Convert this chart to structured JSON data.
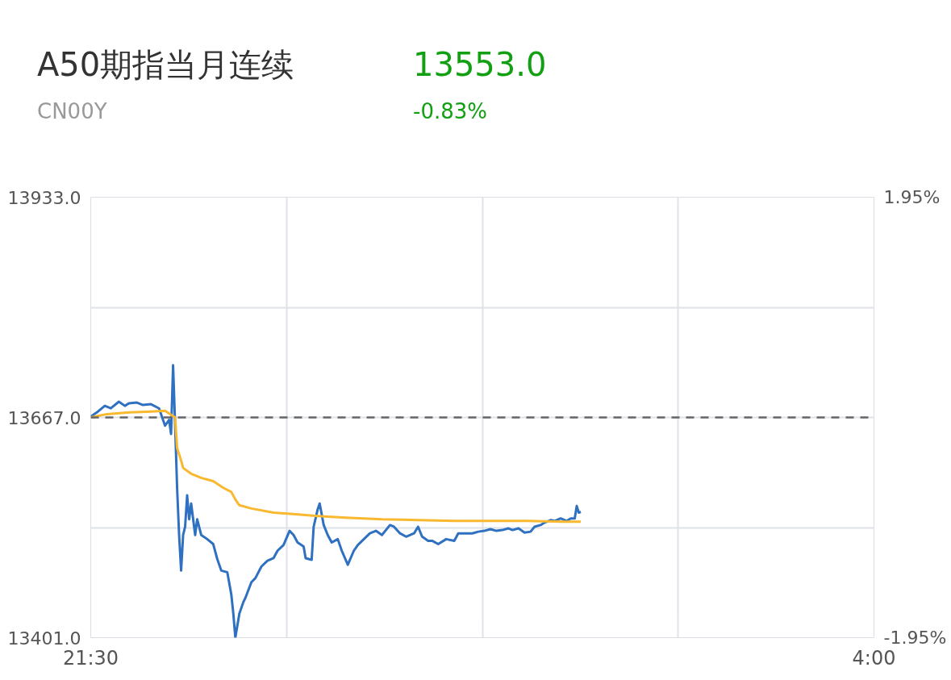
{
  "chart_data": {
    "type": "line",
    "title": "A50期指当月连续",
    "subtitle": "CN00Y",
    "annotations": [
      "13553.0",
      "-0.83%"
    ],
    "xlim": [
      "2000-01-01T21:30",
      "2000-01-02T04:00"
    ],
    "xticks": [
      {
        "value": "2000-01-01T21:30",
        "label": "21:30"
      },
      {
        "value": "2000-01-01T23:07:30",
        "label": null
      },
      {
        "value": "2000-01-02T00:45",
        "label": null
      },
      {
        "value": "2000-01-02T02:22:30",
        "label": null
      },
      {
        "value": "2000-01-02T04:00",
        "label": "4:00"
      }
    ],
    "ylim": [
      13401,
      13933
    ],
    "yticks": [
      {
        "value": 13401,
        "label": "13401.0"
      },
      {
        "value": 13534,
        "label": null
      },
      {
        "value": 13667,
        "label": "13667.0"
      },
      {
        "value": 13800,
        "label": null
      },
      {
        "value": 13933,
        "label": "13933.0"
      }
    ],
    "y2lim": [
      -1.95,
      1.95
    ],
    "y2ticks": [
      {
        "value": -1.95,
        "label": "-1.95%"
      },
      {
        "value": 1.95,
        "label": "1.95%"
      }
    ],
    "grid": true,
    "marker": "none",
    "line_style": "solid",
    "ref_lines": [
      {
        "axis": "y",
        "value": 13667,
        "color": "#666666",
        "line_style": "dashed"
      }
    ],
    "series": [
      {
        "color": "#3070c0",
        "x": [
          "2000-01-01T21:30",
          "2000-01-01T21:33",
          "2000-01-01T21:37",
          "2000-01-01T21:40",
          "2000-01-01T21:44",
          "2000-01-01T21:47",
          "2000-01-01T21:49",
          "2000-01-01T21:53",
          "2000-01-01T21:56",
          "2000-01-01T22:00",
          "2000-01-01T22:04",
          "2000-01-01T22:07",
          "2000-01-01T22:09",
          "2000-01-01T22:10",
          "2000-01-01T22:11",
          "2000-01-01T22:12",
          "2000-01-01T22:13",
          "2000-01-01T22:14",
          "2000-01-01T22:15",
          "2000-01-01T22:16",
          "2000-01-01T22:17",
          "2000-01-01T22:18",
          "2000-01-01T22:19",
          "2000-01-01T22:20",
          "2000-01-01T22:22",
          "2000-01-01T22:23",
          "2000-01-01T22:25",
          "2000-01-01T22:28",
          "2000-01-01T22:31",
          "2000-01-01T22:33",
          "2000-01-01T22:35",
          "2000-01-01T22:38",
          "2000-01-01T22:40",
          "2000-01-01T22:41",
          "2000-01-01T22:42",
          "2000-01-01T22:44",
          "2000-01-01T22:46",
          "2000-01-01T22:47",
          "2000-01-01T22:50",
          "2000-01-01T22:52",
          "2000-01-01T22:55",
          "2000-01-01T22:58",
          "2000-01-01T23:01",
          "2000-01-01T23:03",
          "2000-01-01T23:06",
          "2000-01-01T23:09",
          "2000-01-01T23:11",
          "2000-01-01T23:13",
          "2000-01-01T23:16",
          "2000-01-01T23:17",
          "2000-01-01T23:20",
          "2000-01-01T23:21",
          "2000-01-01T23:23",
          "2000-01-01T23:24",
          "2000-01-01T23:26",
          "2000-01-01T23:28",
          "2000-01-01T23:30",
          "2000-01-01T23:33",
          "2000-01-01T23:35",
          "2000-01-01T23:38",
          "2000-01-01T23:41",
          "2000-01-01T23:43",
          "2000-01-01T23:46",
          "2000-01-01T23:49",
          "2000-01-01T23:52",
          "2000-01-01T23:55",
          "2000-01-01T23:59",
          "2000-01-02T00:01",
          "2000-01-02T00:04",
          "2000-01-02T00:07",
          "2000-01-02T00:11",
          "2000-01-02T00:13",
          "2000-01-02T00:15",
          "2000-01-02T00:18",
          "2000-01-02T00:20",
          "2000-01-02T00:23",
          "2000-01-02T00:27",
          "2000-01-02T00:31",
          "2000-01-02T00:33",
          "2000-01-02T00:36",
          "2000-01-02T00:40",
          "2000-01-02T00:43",
          "2000-01-02T00:46",
          "2000-01-02T00:49",
          "2000-01-02T00:52",
          "2000-01-02T00:55",
          "2000-01-02T00:58",
          "2000-01-02T01:00",
          "2000-01-02T01:03",
          "2000-01-02T01:06",
          "2000-01-02T01:09",
          "2000-01-02T01:11",
          "2000-01-02T01:14",
          "2000-01-02T01:16",
          "2000-01-02T01:19",
          "2000-01-02T01:21",
          "2000-01-02T01:24",
          "2000-01-02T01:27",
          "2000-01-02T01:29",
          "2000-01-02T01:31",
          "2000-01-02T01:32",
          "2000-01-02T01:33",
          "2000-01-02T01:34"
        ],
        "values": [
          13668,
          13673,
          13681,
          13678,
          13686,
          13681,
          13684,
          13685,
          13682,
          13683,
          13678,
          13657,
          13664,
          13647,
          13730,
          13659,
          13582,
          13525,
          13482,
          13525,
          13535,
          13573,
          13544,
          13563,
          13525,
          13544,
          13525,
          13520,
          13514,
          13496,
          13482,
          13480,
          13453,
          13430,
          13401,
          13430,
          13444,
          13449,
          13468,
          13473,
          13487,
          13494,
          13497,
          13506,
          13513,
          13530,
          13525,
          13516,
          13511,
          13497,
          13495,
          13535,
          13556,
          13563,
          13537,
          13525,
          13516,
          13520,
          13506,
          13489,
          13506,
          13513,
          13520,
          13527,
          13530,
          13525,
          13537,
          13535,
          13527,
          13523,
          13527,
          13535,
          13523,
          13518,
          13518,
          13514,
          13520,
          13518,
          13527,
          13527,
          13527,
          13529,
          13530,
          13532,
          13530,
          13531,
          13533,
          13531,
          13533,
          13528,
          13529,
          13535,
          13537,
          13540,
          13543,
          13542,
          13545,
          13542,
          13545,
          13545,
          13560,
          13552,
          13553
        ]
      },
      {
        "color": "#f8b830",
        "x": [
          "2000-01-01T21:30",
          "2000-01-01T21:38",
          "2000-01-01T21:49",
          "2000-01-01T22:00",
          "2000-01-01T22:07",
          "2000-01-01T22:12",
          "2000-01-01T22:13",
          "2000-01-01T22:15",
          "2000-01-01T22:16",
          "2000-01-01T22:20",
          "2000-01-01T22:25",
          "2000-01-01T22:31",
          "2000-01-01T22:36",
          "2000-01-01T22:40",
          "2000-01-01T22:42",
          "2000-01-01T22:44",
          "2000-01-01T22:50",
          "2000-01-01T23:01",
          "2000-01-01T23:12",
          "2000-01-01T23:23",
          "2000-01-01T23:37",
          "2000-01-01T23:55",
          "2000-01-02T00:13",
          "2000-01-02T00:31",
          "2000-01-02T00:49",
          "2000-01-02T01:07",
          "2000-01-02T01:25",
          "2000-01-02T01:34"
        ],
        "values": [
          13667,
          13671,
          13673,
          13674,
          13675,
          13667,
          13630,
          13615,
          13606,
          13599,
          13594,
          13590,
          13582,
          13577,
          13568,
          13561,
          13557,
          13552,
          13550,
          13548,
          13546,
          13544,
          13543,
          13542,
          13542,
          13542,
          13541,
          13541
        ]
      }
    ]
  }
}
